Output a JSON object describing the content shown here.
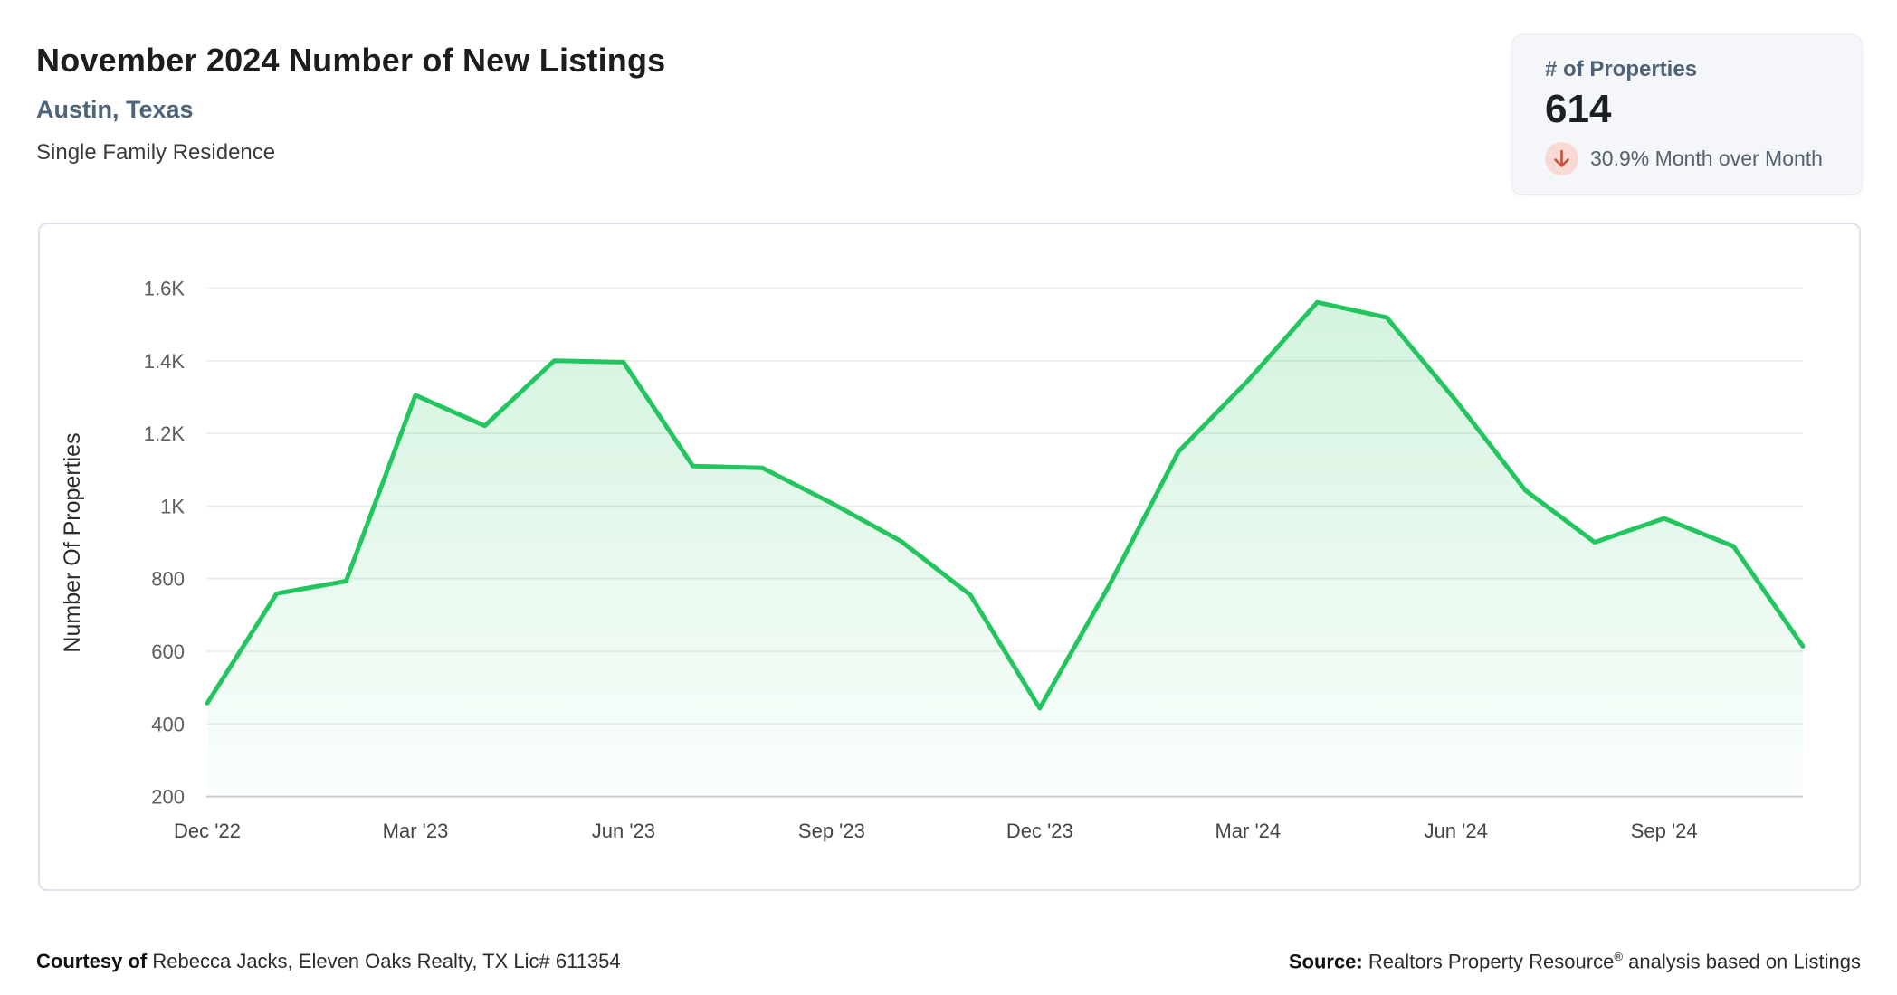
{
  "header": {
    "title": "November 2024 Number of New Listings",
    "location": "Austin, Texas",
    "property_type": "Single Family Residence"
  },
  "stats": {
    "label": "# of Properties",
    "value": "614",
    "trend_direction": "down",
    "trend_text": "30.9% Month over Month",
    "trend_icon": "down-arrow-icon",
    "arrow_color": "#c7503c",
    "arrow_bg_color": "#f8d9d3"
  },
  "chart_data": {
    "type": "area",
    "title": "November 2024 Number of New Listings",
    "xlabel": "",
    "ylabel": "Number Of Properties",
    "x": [
      "Dec '22",
      "Jan '23",
      "Feb '23",
      "Mar '23",
      "Apr '23",
      "May '23",
      "Jun '23",
      "Jul '23",
      "Aug '23",
      "Sep '23",
      "Oct '23",
      "Nov '23",
      "Dec '23",
      "Jan '24",
      "Feb '24",
      "Mar '24",
      "Apr '24",
      "May '24",
      "Jun '24",
      "Jul '24",
      "Aug '24",
      "Sep '24",
      "Oct '24",
      "Nov '24"
    ],
    "values": [
      457,
      759,
      793,
      1305,
      1221,
      1400,
      1396,
      1110,
      1105,
      1008,
      903,
      755,
      443,
      781,
      1150,
      1345,
      1561,
      1519,
      1290,
      1043,
      900,
      966,
      889,
      614
    ],
    "x_tick_indices": [
      0,
      3,
      6,
      9,
      12,
      15,
      18,
      21
    ],
    "x_tick_labels": [
      "Dec '22",
      "Mar '23",
      "Jun '23",
      "Sep '23",
      "Dec '23",
      "Mar '24",
      "Jun '24",
      "Sep '24"
    ],
    "y_ticks": [
      {
        "value": 200,
        "label": "200"
      },
      {
        "value": 400,
        "label": "400"
      },
      {
        "value": 600,
        "label": "600"
      },
      {
        "value": 800,
        "label": "800"
      },
      {
        "value": 1000,
        "label": "1K"
      },
      {
        "value": 1200,
        "label": "1.2K"
      },
      {
        "value": 1400,
        "label": "1.4K"
      },
      {
        "value": 1600,
        "label": "1.6K"
      }
    ],
    "ylim": [
      200,
      1600
    ],
    "grid": true,
    "legend": false,
    "line_color": "#22c55e",
    "fill_top_color": "rgba(34,197,94,0.20)",
    "fill_bottom_color": "rgba(34,197,94,0.02)",
    "grid_color": "#e9eaec",
    "axis_color": "#cbcbcb"
  },
  "footer": {
    "courtesy_label": "Courtesy of",
    "courtesy_text": "Rebecca Jacks, Eleven Oaks Realty, TX Lic# 611354",
    "source_label": "Source:",
    "source_name": "Realtors Property Resource",
    "source_reg": "®",
    "source_suffix": "analysis based on Listings"
  }
}
